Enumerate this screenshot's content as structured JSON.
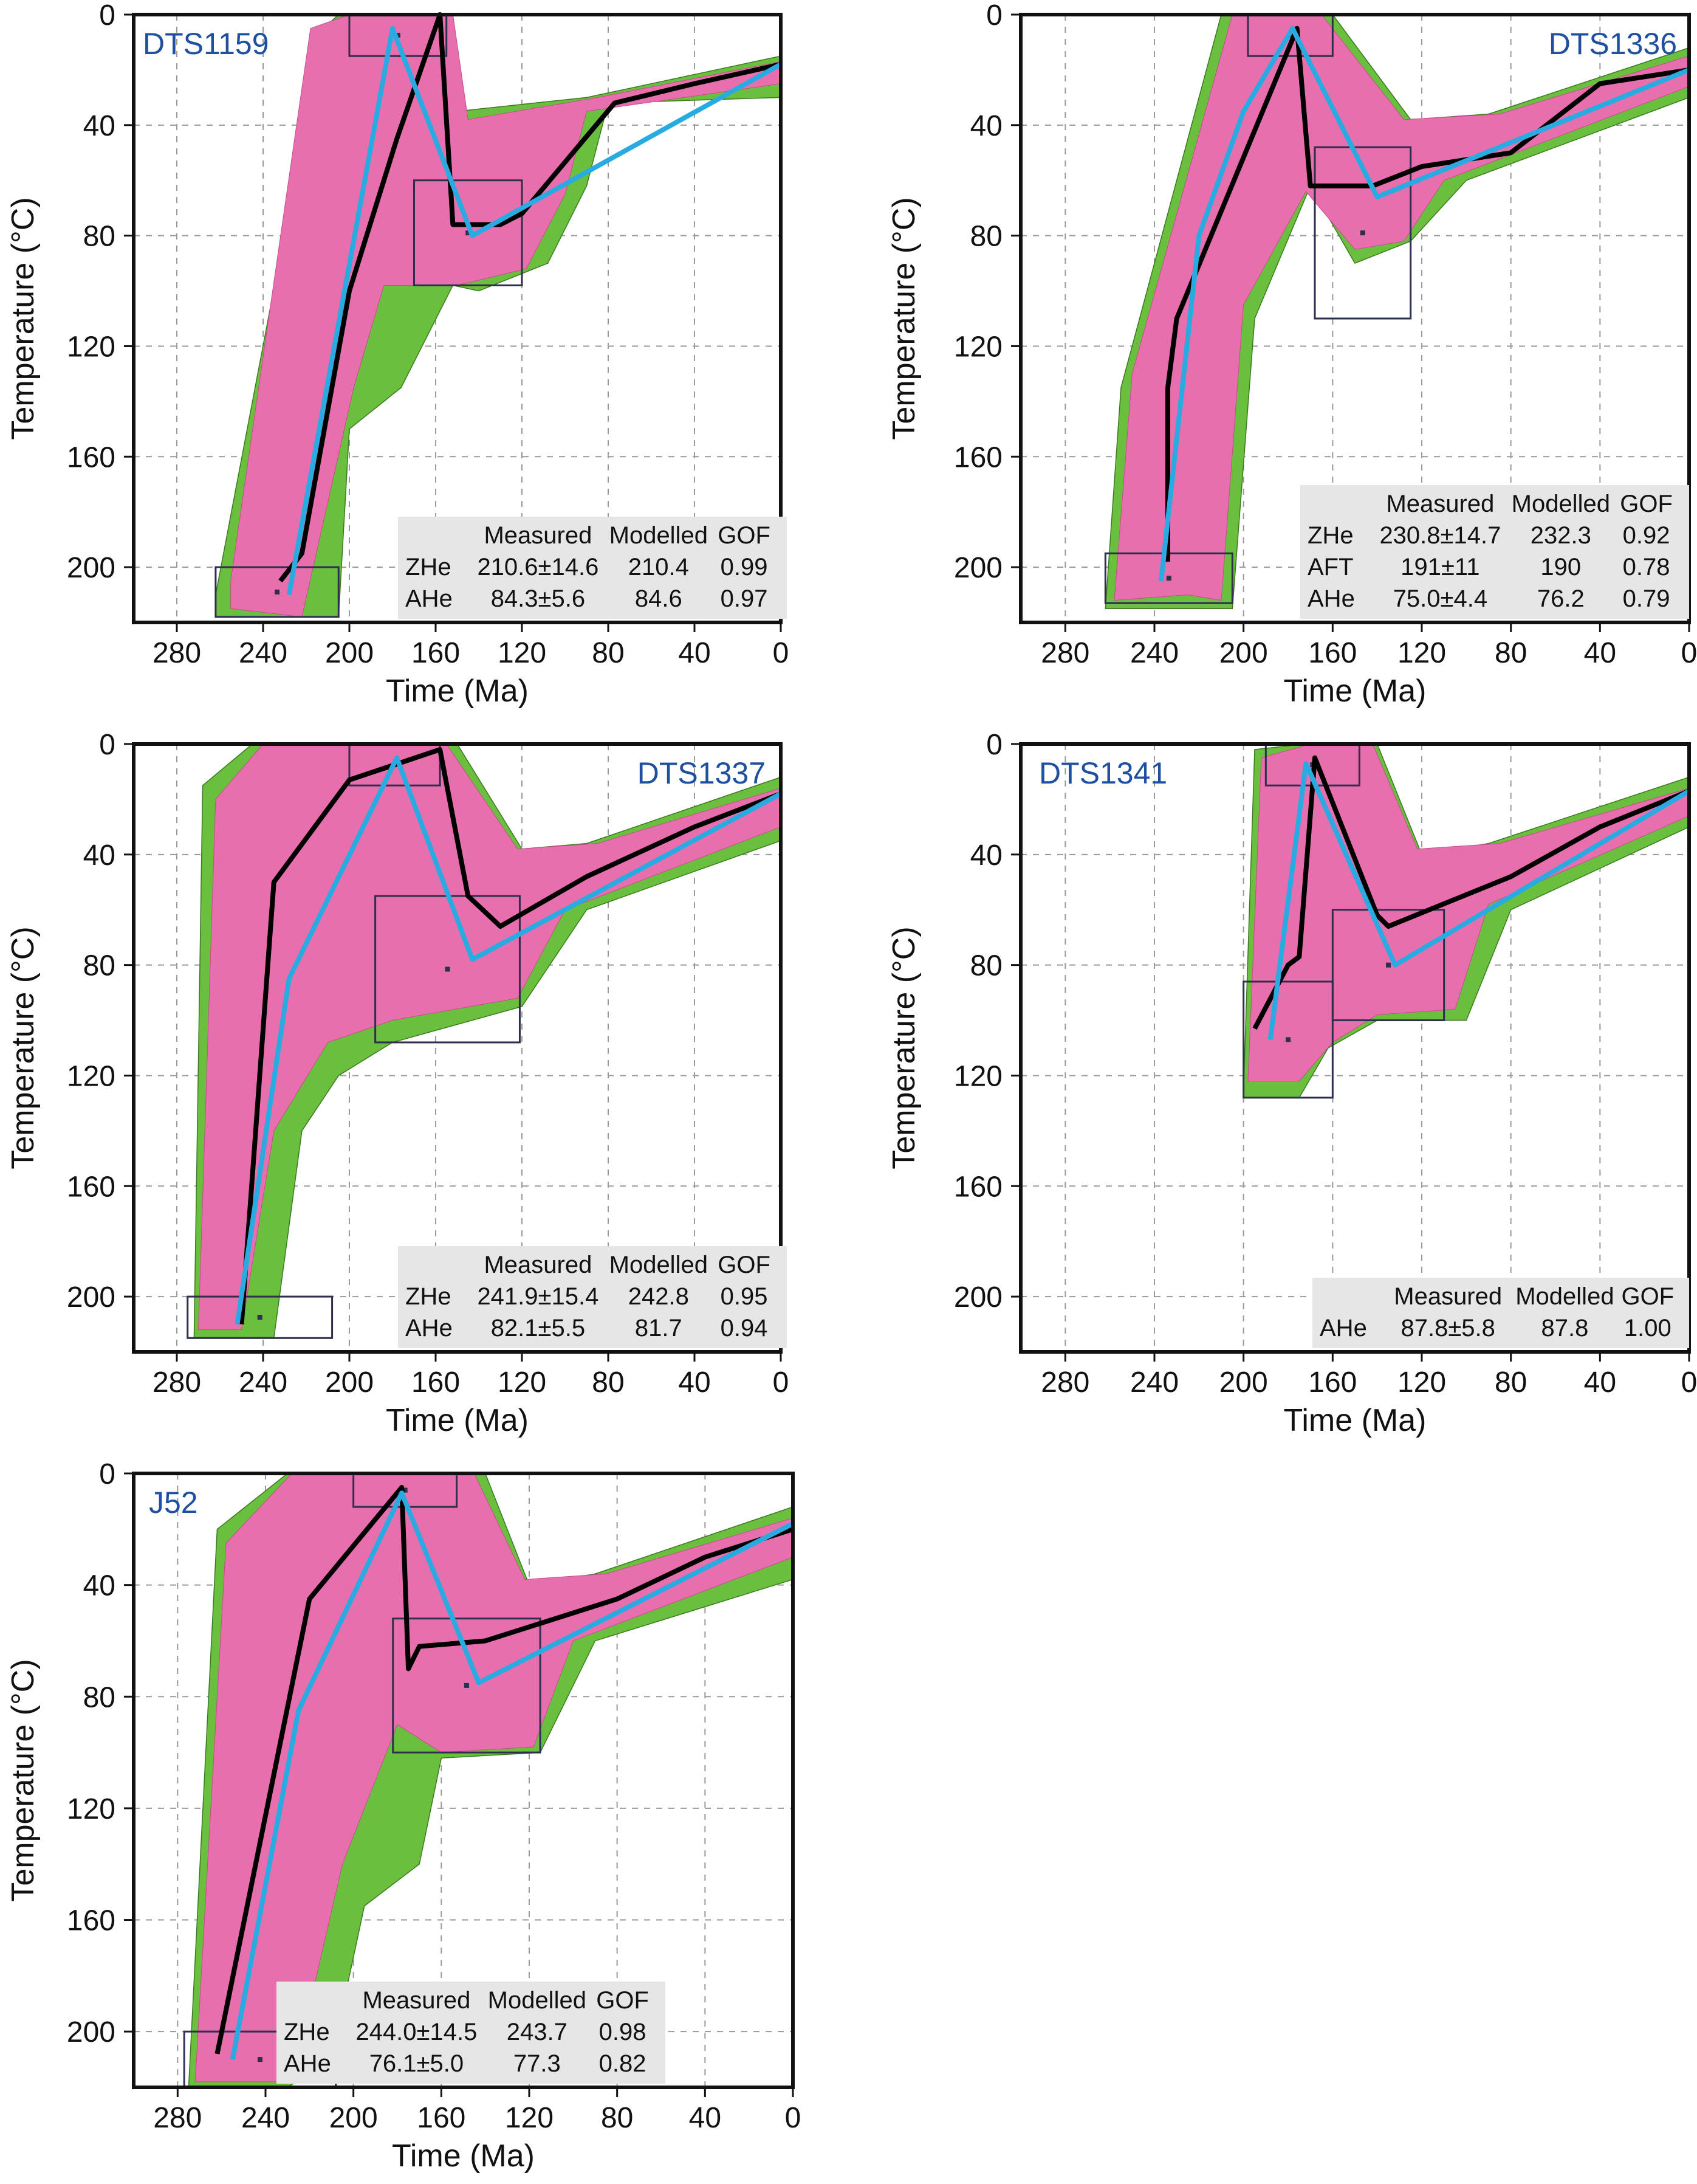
{
  "axis_labels": {
    "x": "Time (Ma)",
    "y": "Temperature (°C)"
  },
  "colors": {
    "good": "#6bbf3f",
    "acceptable": "#e86fae",
    "weighted_mean": "#000000",
    "best_fit": "#29abe2",
    "box": "#2e2e4e",
    "label": "#1f4fa0",
    "table_bg": "#e6e6e6"
  },
  "chart_data": [
    {
      "type": "line",
      "sample": "DTS1159",
      "x_ticks": [
        280,
        240,
        200,
        160,
        120,
        80,
        40,
        0
      ],
      "y_ticks": [
        0,
        40,
        80,
        120,
        160,
        200
      ],
      "xlim": [
        300,
        0
      ],
      "ylim": [
        0,
        220
      ],
      "weighted_mean_path": {
        "x": [
          232,
          222,
          200,
          178,
          158,
          152,
          130,
          120,
          77,
          40,
          0
        ],
        "y": [
          205,
          195,
          100,
          45,
          0,
          76,
          76,
          72,
          32,
          25,
          18
        ]
      },
      "best_fit_path": {
        "x": [
          228,
          180,
          143,
          0
        ],
        "y": [
          210,
          5,
          80,
          18
        ]
      },
      "constraint_boxes": [
        {
          "x": [
            200,
            155
          ],
          "y": [
            0,
            15
          ]
        },
        {
          "x": [
            170,
            120
          ],
          "y": [
            60,
            98
          ]
        },
        {
          "x": [
            262,
            205
          ],
          "y": [
            200,
            218
          ]
        }
      ],
      "good_envelope": {
        "upper_x": [
          262,
          212,
          205,
          155,
          150,
          90,
          0
        ],
        "upper_y": [
          210,
          5,
          0,
          0,
          35,
          30,
          15
        ],
        "lower_x": [
          0,
          80,
          90,
          108,
          140,
          152,
          176,
          200,
          205,
          262
        ],
        "lower_y": [
          30,
          32,
          62,
          90,
          100,
          98,
          135,
          150,
          218,
          218
        ]
      },
      "acceptable_envelope": {
        "upper_x": [
          255,
          218,
          200,
          152,
          145,
          85,
          0
        ],
        "upper_y": [
          205,
          5,
          0,
          0,
          38,
          30,
          17
        ],
        "lower_x": [
          0,
          90,
          100,
          118,
          150,
          184,
          198,
          222,
          255
        ],
        "lower_y": [
          25,
          35,
          65,
          92,
          98,
          98,
          135,
          218,
          215
        ]
      },
      "table": {
        "headers": [
          "",
          "Measured",
          "Modelled",
          "GOF"
        ],
        "rows": [
          [
            "ZHe",
            "210.6±14.6",
            "210.4",
            "0.99"
          ],
          [
            "AHe",
            "84.3±5.6",
            "84.6",
            "0.97"
          ]
        ]
      }
    },
    {
      "type": "line",
      "sample": "DTS1336",
      "x_ticks": [
        280,
        240,
        200,
        160,
        120,
        80,
        40,
        0
      ],
      "y_ticks": [
        0,
        40,
        80,
        120,
        160,
        200
      ],
      "xlim": [
        300,
        0
      ],
      "ylim": [
        0,
        220
      ],
      "weighted_mean_path": {
        "x": [
          234,
          234,
          230,
          176,
          170,
          142,
          120,
          80,
          40,
          0
        ],
        "y": [
          198,
          135,
          110,
          5,
          62,
          62,
          55,
          50,
          25,
          20
        ]
      },
      "best_fit_path": {
        "x": [
          237,
          220,
          200,
          178,
          140,
          0
        ],
        "y": [
          205,
          80,
          35,
          5,
          66,
          20
        ]
      },
      "constraint_boxes": [
        {
          "x": [
            198,
            160
          ],
          "y": [
            0,
            15
          ]
        },
        {
          "x": [
            168,
            125
          ],
          "y": [
            48,
            110
          ]
        },
        {
          "x": [
            262,
            205
          ],
          "y": [
            195,
            213
          ]
        }
      ],
      "good_envelope": {
        "upper_x": [
          262,
          255,
          210,
          160,
          125,
          90,
          0
        ],
        "upper_y": [
          215,
          135,
          0,
          0,
          38,
          36,
          12
        ],
        "lower_x": [
          0,
          100,
          125,
          150,
          170,
          195,
          205,
          225,
          262
        ],
        "lower_y": [
          30,
          60,
          82,
          90,
          62,
          110,
          215,
          215,
          215
        ]
      },
      "acceptable_envelope": {
        "upper_x": [
          258,
          250,
          205,
          165,
          128,
          85,
          0
        ],
        "upper_y": [
          212,
          130,
          0,
          0,
          38,
          36,
          15
        ],
        "lower_x": [
          0,
          110,
          128,
          150,
          172,
          200,
          210,
          225,
          258
        ],
        "lower_y": [
          26,
          60,
          82,
          85,
          64,
          105,
          212,
          210,
          212
        ]
      },
      "table": {
        "headers": [
          "",
          "Measured",
          "Modelled",
          "GOF"
        ],
        "rows": [
          [
            "ZHe",
            "230.8±14.7",
            "232.3",
            "0.92"
          ],
          [
            "AFT",
            "191±11",
            "190",
            "0.78"
          ],
          [
            "AHe",
            "75.0±4.4",
            "76.2",
            "0.79"
          ]
        ]
      }
    },
    {
      "type": "line",
      "sample": "DTS1337",
      "x_ticks": [
        280,
        240,
        200,
        160,
        120,
        80,
        40,
        0
      ],
      "y_ticks": [
        0,
        40,
        80,
        120,
        160,
        200
      ],
      "xlim": [
        300,
        0
      ],
      "ylim": [
        0,
        220
      ],
      "weighted_mean_path": {
        "x": [
          250,
          235,
          200,
          158,
          145,
          130,
          90,
          40,
          0
        ],
        "y": [
          210,
          50,
          13,
          2,
          55,
          66,
          48,
          30,
          18
        ]
      },
      "best_fit_path": {
        "x": [
          252,
          228,
          178,
          143,
          0
        ],
        "y": [
          210,
          85,
          5,
          78,
          18
        ]
      },
      "constraint_boxes": [
        {
          "x": [
            200,
            158
          ],
          "y": [
            0,
            15
          ]
        },
        {
          "x": [
            188,
            121
          ],
          "y": [
            55,
            108
          ]
        },
        {
          "x": [
            275,
            208
          ],
          "y": [
            200,
            215
          ]
        }
      ],
      "good_envelope": {
        "upper_x": [
          272,
          268,
          245,
          150,
          120,
          90,
          0
        ],
        "upper_y": [
          215,
          15,
          0,
          0,
          38,
          36,
          12
        ],
        "lower_x": [
          0,
          90,
          120,
          180,
          205,
          222,
          235,
          272
        ],
        "lower_y": [
          35,
          60,
          95,
          108,
          120,
          140,
          215,
          215
        ]
      },
      "acceptable_envelope": {
        "upper_x": [
          270,
          262,
          240,
          155,
          122,
          85,
          0
        ],
        "upper_y": [
          212,
          20,
          0,
          0,
          38,
          36,
          16
        ],
        "lower_x": [
          0,
          100,
          122,
          180,
          210,
          235,
          250,
          270
        ],
        "lower_y": [
          30,
          60,
          92,
          100,
          108,
          140,
          212,
          212
        ]
      },
      "table": {
        "headers": [
          "",
          "Measured",
          "Modelled",
          "GOF"
        ],
        "rows": [
          [
            "ZHe",
            "241.9±15.4",
            "242.8",
            "0.95"
          ],
          [
            "AHe",
            "82.1±5.5",
            "81.7",
            "0.94"
          ]
        ]
      }
    },
    {
      "type": "line",
      "sample": "DTS1341",
      "x_ticks": [
        280,
        240,
        200,
        160,
        120,
        80,
        40,
        0
      ],
      "y_ticks": [
        0,
        40,
        80,
        120,
        160,
        200
      ],
      "xlim": [
        300,
        0
      ],
      "ylim": [
        0,
        220
      ],
      "weighted_mean_path": {
        "x": [
          195,
          180,
          175,
          168,
          140,
          135,
          80,
          40,
          0
        ],
        "y": [
          103,
          80,
          77,
          5,
          62,
          66,
          48,
          30,
          17
        ]
      },
      "best_fit_path": {
        "x": [
          188,
          172,
          132,
          0
        ],
        "y": [
          107,
          7,
          80,
          17
        ]
      },
      "constraint_boxes": [
        {
          "x": [
            190,
            148
          ],
          "y": [
            0,
            15
          ]
        },
        {
          "x": [
            160,
            110
          ],
          "y": [
            60,
            100
          ]
        },
        {
          "x": [
            200,
            160
          ],
          "y": [
            86,
            128
          ]
        }
      ],
      "good_envelope": {
        "upper_x": [
          200,
          195,
          172,
          140,
          120,
          90,
          0
        ],
        "upper_y": [
          125,
          2,
          0,
          0,
          40,
          36,
          12
        ],
        "lower_x": [
          0,
          80,
          100,
          140,
          162,
          175,
          200
        ],
        "lower_y": [
          30,
          60,
          100,
          100,
          110,
          128,
          128
        ]
      },
      "acceptable_envelope": {
        "upper_x": [
          198,
          192,
          170,
          142,
          122,
          85,
          0
        ],
        "upper_y": [
          122,
          5,
          0,
          0,
          38,
          36,
          16
        ],
        "lower_x": [
          0,
          90,
          105,
          140,
          160,
          175,
          198
        ],
        "lower_y": [
          26,
          58,
          96,
          98,
          108,
          122,
          122
        ]
      },
      "table": {
        "headers": [
          "",
          "Measured",
          "Modelled",
          "GOF"
        ],
        "rows": [
          [
            "AHe",
            "87.8±5.8",
            "87.8",
            "1.00"
          ]
        ]
      }
    },
    {
      "type": "line",
      "sample": "J52",
      "x_ticks": [
        280,
        240,
        200,
        160,
        120,
        80,
        40,
        0
      ],
      "y_ticks": [
        0,
        40,
        80,
        120,
        160,
        200
      ],
      "xlim": [
        300,
        0
      ],
      "ylim": [
        0,
        220
      ],
      "weighted_mean_path": {
        "x": [
          262,
          220,
          178,
          175,
          170,
          140,
          80,
          40,
          0
        ],
        "y": [
          208,
          45,
          5,
          70,
          62,
          60,
          45,
          30,
          20
        ]
      },
      "best_fit_path": {
        "x": [
          255,
          225,
          178,
          143,
          0
        ],
        "y": [
          210,
          85,
          7,
          75,
          18
        ]
      },
      "constraint_boxes": [
        {
          "x": [
            200,
            153
          ],
          "y": [
            0,
            12
          ]
        },
        {
          "x": [
            182,
            115
          ],
          "y": [
            52,
            100
          ]
        },
        {
          "x": [
            277,
            208
          ],
          "y": [
            200,
            220
          ]
        }
      ],
      "good_envelope": {
        "upper_x": [
          275,
          262,
          230,
          140,
          120,
          90,
          0
        ],
        "upper_y": [
          220,
          20,
          0,
          0,
          40,
          36,
          12
        ],
        "lower_x": [
          0,
          90,
          115,
          160,
          170,
          195,
          210,
          230,
          275
        ],
        "lower_y": [
          38,
          60,
          100,
          102,
          140,
          155,
          210,
          220,
          220
        ]
      },
      "acceptable_envelope": {
        "upper_x": [
          272,
          258,
          228,
          145,
          122,
          85,
          0
        ],
        "upper_y": [
          218,
          25,
          0,
          0,
          38,
          36,
          16
        ],
        "lower_x": [
          0,
          100,
          118,
          160,
          180,
          205,
          228,
          250,
          272
        ],
        "lower_y": [
          30,
          60,
          98,
          100,
          90,
          140,
          218,
          218,
          218
        ]
      },
      "table": {
        "headers": [
          "",
          "Measured",
          "Modelled",
          "GOF"
        ],
        "rows": [
          [
            "ZHe",
            "244.0±14.5",
            "243.7",
            "0.98"
          ],
          [
            "AHe",
            "76.1±5.0",
            "77.3",
            "0.82"
          ]
        ]
      }
    }
  ]
}
